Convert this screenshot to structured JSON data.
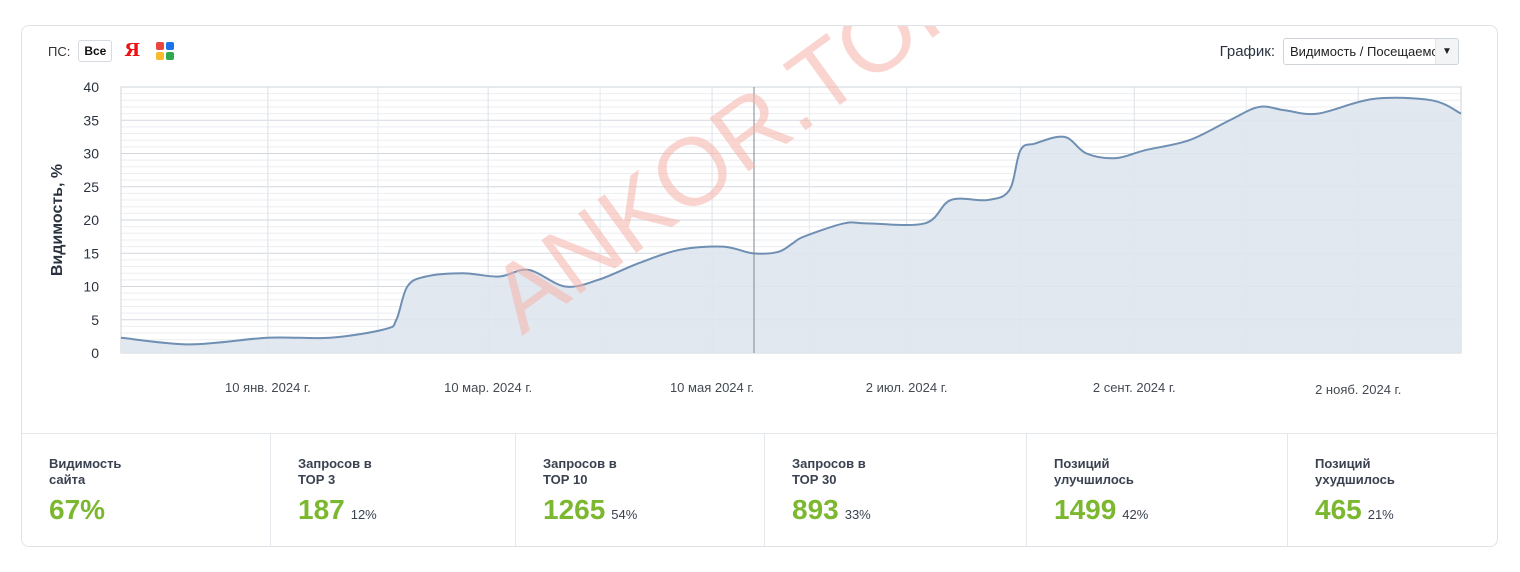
{
  "filters": {
    "ps_label": "ПС:",
    "all_label": "Все",
    "yandex_glyph": "Я",
    "yandex_icon": "yandex-icon",
    "google_icon": "google-icon"
  },
  "graph_select": {
    "label": "График:",
    "value": "Видимость / Посещаемость"
  },
  "watermark": "ANKOR.TOP",
  "colors": {
    "line": "#6f8fb3",
    "area": "#dfe6ee",
    "accent_green": "#7cb82f",
    "watermark": "#f6b3aa"
  },
  "chart_data": {
    "type": "area",
    "ylabel": "Видимость, %",
    "xlabel": "",
    "ylim": [
      0,
      40
    ],
    "yticks": [
      0,
      5,
      10,
      15,
      20,
      25,
      30,
      35,
      40
    ],
    "grid": true,
    "x_tick_labels": [
      "10 янв. 2024 г.",
      "10 мар. 2024 г.",
      "10 мая 2024 г.",
      "2 июл. 2024 г.",
      "2 сент. 2024 г.",
      "2 нояб. 2024 г."
    ],
    "x_tick_dates": [
      "2024-01-10",
      "2024-03-10",
      "2024-05-10",
      "2024-07-02",
      "2024-09-02",
      "2024-11-02"
    ],
    "xlim": [
      "2023-12-01",
      "2024-11-30"
    ],
    "series": [
      {
        "x": [
          "2023-12-01",
          "2023-12-20",
          "2024-01-10",
          "2024-01-27",
          "2024-02-11",
          "2024-02-14",
          "2024-02-17",
          "2024-02-22",
          "2024-03-03",
          "2024-03-13",
          "2024-03-21",
          "2024-03-31",
          "2024-04-09",
          "2024-04-20",
          "2024-05-01",
          "2024-05-13",
          "2024-05-21",
          "2024-05-28",
          "2024-06-01",
          "2024-06-04",
          "2024-06-15",
          "2024-06-21",
          "2024-07-07",
          "2024-07-14",
          "2024-07-24",
          "2024-07-30",
          "2024-08-02",
          "2024-08-06",
          "2024-08-14",
          "2024-08-20",
          "2024-08-28",
          "2024-09-05",
          "2024-09-17",
          "2024-09-28",
          "2024-10-06",
          "2024-10-13",
          "2024-10-22",
          "2024-11-06",
          "2024-11-22",
          "2024-11-30"
        ],
        "values": [
          2.3,
          1.3,
          2.3,
          2.3,
          3.6,
          5.0,
          10.0,
          11.5,
          12.0,
          11.5,
          12.5,
          10.0,
          11.0,
          13.5,
          15.5,
          16.0,
          15.0,
          15.2,
          16.5,
          17.5,
          19.5,
          19.5,
          19.5,
          23.0,
          23.0,
          24.5,
          30.5,
          31.5,
          32.5,
          30.0,
          29.3,
          30.5,
          32.0,
          35.0,
          37.0,
          36.5,
          36.0,
          38.2,
          38.0,
          36.0
        ]
      }
    ]
  },
  "stats": [
    {
      "title": "Видимость сайта",
      "value": "67%",
      "pct": ""
    },
    {
      "title": "Запросов в ТОР 3",
      "value": "187",
      "pct": "12%"
    },
    {
      "title": "Запросов в ТОР 10",
      "value": "1265",
      "pct": "54%"
    },
    {
      "title": "Запросов в ТОР 30",
      "value": "893",
      "pct": "33%"
    },
    {
      "title": "Позиций улучшилось",
      "value": "1499",
      "pct": "42%"
    },
    {
      "title": "Позиций ухудшилось",
      "value": "465",
      "pct": "21%"
    }
  ]
}
